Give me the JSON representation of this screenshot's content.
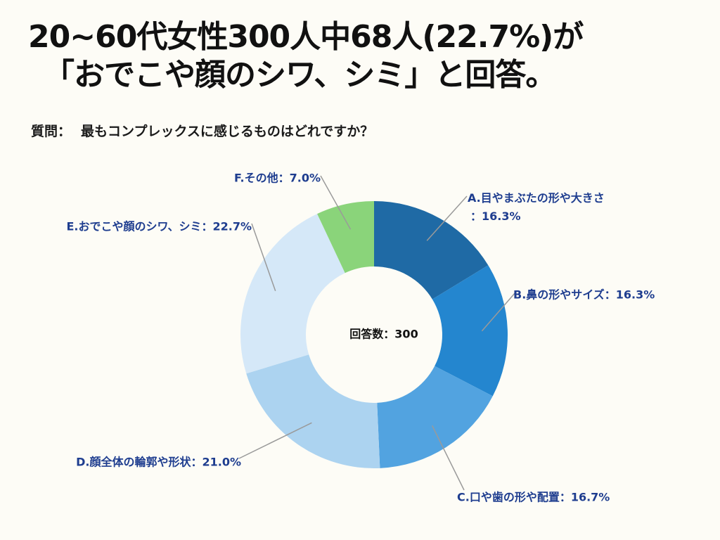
{
  "header": {
    "title_line1": "20~60代女性300人中68人(22.7%)が",
    "title_line2": "「おでこや顔のシワ、シミ」と回答。"
  },
  "question": {
    "prefix": "質問：",
    "text": "最もコンプレックスに感じるものはどれですか？"
  },
  "chart_data": {
    "type": "pie",
    "donut": true,
    "center_text": "回答数：300",
    "categories": [
      "A.目やまぶたの形や大きさ",
      "B.鼻の形やサイズ",
      "C.口や歯の形や配置",
      "D.顔全体の輪郭や形状",
      "E.おでこや顔のシワ、シミ",
      "F.その他"
    ],
    "values": [
      16.3,
      16.3,
      16.7,
      21.0,
      22.7,
      7.0
    ],
    "unit": "%",
    "labels": [
      "A.目やまぶたの形や大きさ：16.3%",
      "B.鼻の形やサイズ：16.3%",
      "C.口や歯の形や配置：16.7%",
      "D.顔全体の輪郭や形状：21.0%",
      "E.おでこや顔のシワ、シミ：22.7%",
      "F.その他：7.0%"
    ],
    "label_wrap": {
      "A.目やまぶたの形や大きさ：16.3%": [
        "A.目やまぶたの形や大きさ",
        "：16.3%"
      ]
    },
    "colors": [
      "#1f6aa5",
      "#2486cf",
      "#52a3e0",
      "#acd3f0",
      "#d5e8f8",
      "#8ad47a"
    ],
    "label_color": "#1e3d8f",
    "leader_color": "#9a9a9a",
    "start": "12 o'clock",
    "direction": "clockwise"
  }
}
